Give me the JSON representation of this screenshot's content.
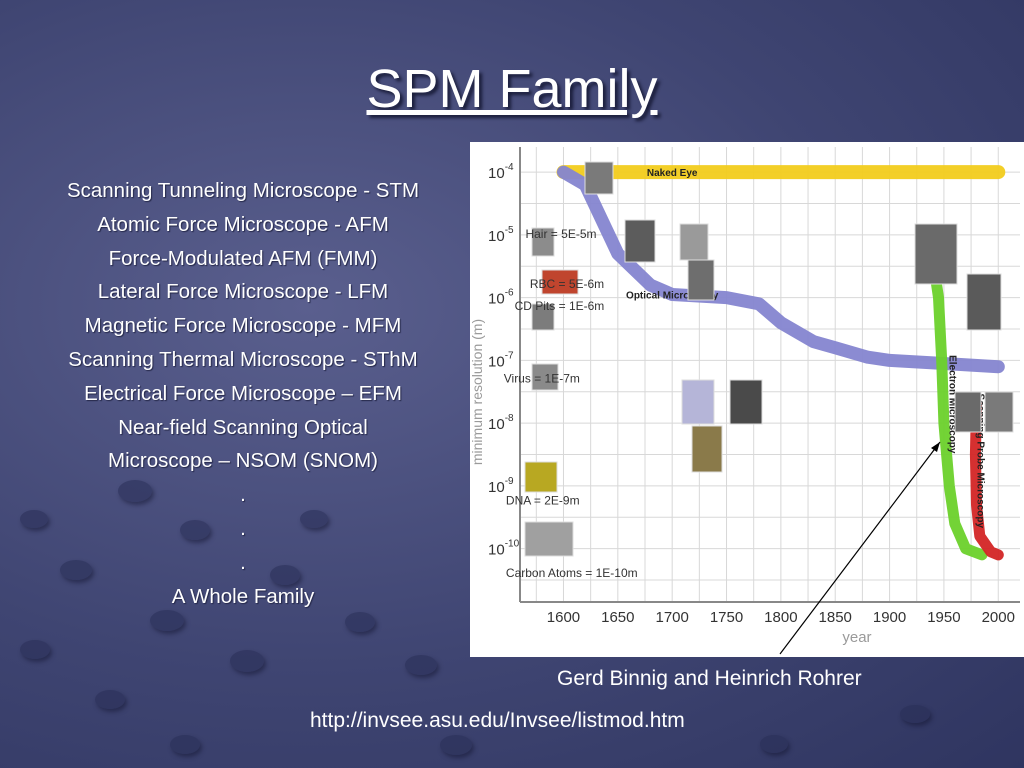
{
  "slide": {
    "title": "SPM Family",
    "bullets": [
      "Scanning Tunneling Microscope - STM",
      "Atomic Force Microscope - AFM",
      "Force-Modulated AFM (FMM)",
      "Lateral Force Microscope - LFM",
      "Magnetic Force Microscope - MFM",
      "Scanning Thermal Microscope - SThM",
      "Electrical Force Microscope – EFM",
      "Near-field Scanning Optical",
      "Microscope – NSOM (SNOM)",
      ".",
      ".",
      ".",
      "A Whole Family"
    ],
    "caption": "Gerd Binnig  and Heinrich Rohrer",
    "url": "http://invsee.asu.edu/Invsee/listmod.htm"
  },
  "chart_data": {
    "type": "line",
    "xlabel": "year",
    "ylabel": "minimum resolution (m)",
    "x_ticks": [
      1600,
      1650,
      1700,
      1750,
      1800,
      1850,
      1900,
      1950,
      2000
    ],
    "y_ticks": [
      {
        "base": "10",
        "exp": "-4",
        "value": -4
      },
      {
        "base": "10",
        "exp": "-5",
        "value": -5
      },
      {
        "base": "10",
        "exp": "-6",
        "value": -6
      },
      {
        "base": "10",
        "exp": "-7",
        "value": -7
      },
      {
        "base": "10",
        "exp": "-8",
        "value": -8
      },
      {
        "base": "10",
        "exp": "-9",
        "value": -9
      },
      {
        "base": "10",
        "exp": "-10",
        "value": -10
      }
    ],
    "xlim": [
      1560,
      2020
    ],
    "y_log_range": [
      -3.6,
      -10.85
    ],
    "grid": true,
    "series": [
      {
        "name": "Naked Eye",
        "color": "#f2cc1c",
        "points": [
          [
            1600,
            -4
          ],
          [
            2000,
            -4
          ]
        ]
      },
      {
        "name": "Optical Microscopy",
        "color": "#8585d0",
        "points": [
          [
            1600,
            -4
          ],
          [
            1620,
            -4.2
          ],
          [
            1650,
            -5.3
          ],
          [
            1680,
            -5.8
          ],
          [
            1700,
            -5.95
          ],
          [
            1750,
            -6
          ],
          [
            1780,
            -6.1
          ],
          [
            1800,
            -6.4
          ],
          [
            1830,
            -6.7
          ],
          [
            1850,
            -6.8
          ],
          [
            1880,
            -6.95
          ],
          [
            1900,
            -7.0
          ],
          [
            1950,
            -7.05
          ],
          [
            2000,
            -7.1
          ]
        ]
      },
      {
        "name": "Electron Microscopy",
        "color": "#6bd12b",
        "points": [
          [
            1930,
            -5.0
          ],
          [
            1940,
            -5.4
          ],
          [
            1945,
            -6.0
          ],
          [
            1948,
            -7.0
          ],
          [
            1950,
            -8.0
          ],
          [
            1955,
            -9.0
          ],
          [
            1960,
            -9.6
          ],
          [
            1970,
            -10.0
          ],
          [
            1985,
            -10.1
          ]
        ]
      },
      {
        "name": "Scanning Probe Microscopy",
        "color": "#d32525",
        "points": [
          [
            1980,
            -7.7
          ],
          [
            1979,
            -8.5
          ],
          [
            1980,
            -9.3
          ],
          [
            1983,
            -9.8
          ],
          [
            1993,
            -10.05
          ],
          [
            2000,
            -10.1
          ]
        ]
      }
    ],
    "annotations": [
      {
        "text": "Hair = 5E-5m",
        "x": 1600,
        "y": -5.05
      },
      {
        "text": "RBC = 5E-6m",
        "x": 1604,
        "y": -5.85
      },
      {
        "text": "CD Pits = 1E-6m",
        "x": 1590,
        "y": -6.2
      },
      {
        "text": "Virus = 1E-7m",
        "x": 1580,
        "y": -7.35
      },
      {
        "text": "DNA = 2E-9m",
        "x": 1582,
        "y": -9.3
      },
      {
        "text": "Carbon Atoms = 1E-10m",
        "x": 1582,
        "y": -10.45
      }
    ]
  },
  "colors": {
    "background": "#3f4572",
    "text": "#ffffff",
    "chart_bg": "#ffffff",
    "grid": "#d8d8d8",
    "axis_text": "#555555"
  }
}
